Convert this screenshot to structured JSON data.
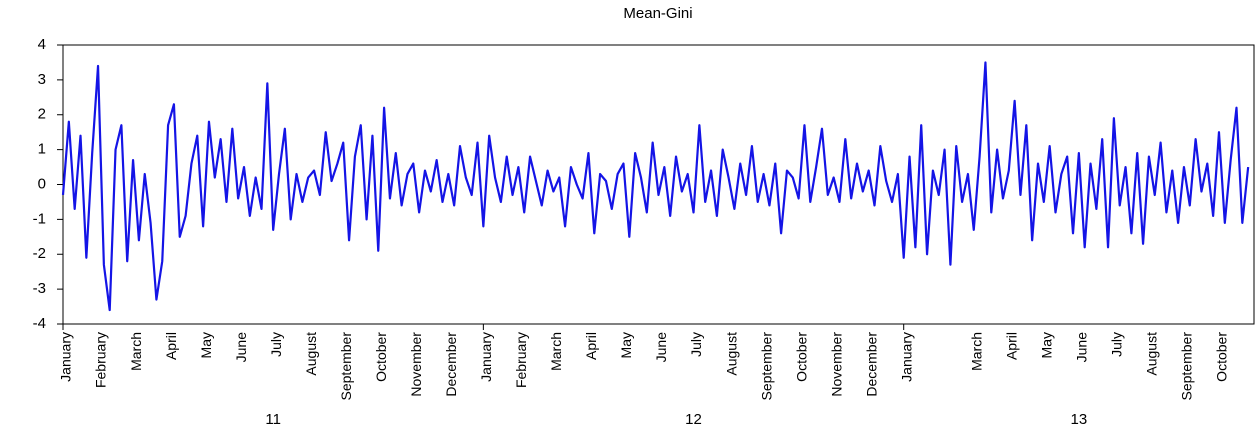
{
  "chart_data": {
    "type": "line",
    "title": "Mean-Gini",
    "categories": [
      "January",
      null,
      null,
      null,
      null,
      null,
      "February",
      null,
      null,
      null,
      null,
      null,
      "March",
      null,
      null,
      null,
      null,
      null,
      "April",
      null,
      null,
      null,
      null,
      null,
      "May",
      null,
      null,
      null,
      null,
      null,
      "June",
      null,
      null,
      null,
      null,
      null,
      "July",
      null,
      null,
      null,
      null,
      null,
      "August",
      null,
      null,
      null,
      null,
      null,
      "September",
      null,
      null,
      null,
      null,
      null,
      "October",
      null,
      null,
      null,
      null,
      null,
      "November",
      null,
      null,
      null,
      null,
      null,
      "December",
      null,
      null,
      null,
      null,
      null,
      "January",
      null,
      null,
      null,
      null,
      null,
      "February",
      null,
      null,
      null,
      null,
      null,
      "March",
      null,
      null,
      null,
      null,
      null,
      "April",
      null,
      null,
      null,
      null,
      null,
      "May",
      null,
      null,
      null,
      null,
      null,
      "June",
      null,
      null,
      null,
      null,
      null,
      "July",
      null,
      null,
      null,
      null,
      null,
      "August",
      null,
      null,
      null,
      null,
      null,
      "September",
      null,
      null,
      null,
      null,
      null,
      "October",
      null,
      null,
      null,
      null,
      null,
      "November",
      null,
      null,
      null,
      null,
      null,
      "December",
      null,
      null,
      null,
      null,
      null,
      "January",
      null,
      null,
      null,
      null,
      null,
      null,
      null,
      null,
      null,
      null,
      null,
      "March",
      null,
      null,
      null,
      null,
      null,
      "April",
      null,
      null,
      null,
      null,
      null,
      "May",
      null,
      null,
      null,
      null,
      null,
      "June",
      null,
      null,
      null,
      null,
      null,
      "July",
      null,
      null,
      null,
      null,
      null,
      "August",
      null,
      null,
      null,
      null,
      null,
      "September",
      null,
      null,
      null,
      null,
      null,
      "October",
      null,
      null,
      null,
      null,
      null
    ],
    "groups": [
      {
        "label": "11",
        "count": 72
      },
      {
        "label": "12",
        "count": 72
      },
      {
        "label": "13",
        "count": 60
      }
    ],
    "series": [
      {
        "name": "Mean-Gini",
        "color": "#1414e6",
        "values": [
          -0.3,
          1.8,
          -0.7,
          1.4,
          -2.1,
          0.9,
          3.4,
          -2.3,
          -3.6,
          1.0,
          1.7,
          -2.2,
          0.7,
          -1.6,
          0.3,
          -1.1,
          -3.3,
          -2.2,
          1.7,
          2.3,
          -1.5,
          -0.9,
          0.6,
          1.4,
          -1.2,
          1.8,
          0.2,
          1.3,
          -0.5,
          1.6,
          -0.4,
          0.5,
          -0.9,
          0.2,
          -0.7,
          2.9,
          -1.3,
          0.3,
          1.6,
          -1.0,
          0.3,
          -0.5,
          0.2,
          0.4,
          -0.3,
          1.5,
          0.1,
          0.6,
          1.2,
          -1.6,
          0.8,
          1.7,
          -1.0,
          1.4,
          -1.9,
          2.2,
          -0.4,
          0.9,
          -0.6,
          0.3,
          0.6,
          -0.8,
          0.4,
          -0.2,
          0.7,
          -0.5,
          0.3,
          -0.6,
          1.1,
          0.2,
          -0.3,
          1.2,
          -1.2,
          1.4,
          0.2,
          -0.5,
          0.8,
          -0.3,
          0.5,
          -0.8,
          0.8,
          0.1,
          -0.6,
          0.4,
          -0.2,
          0.2,
          -1.2,
          0.5,
          0.0,
          -0.4,
          0.9,
          -1.4,
          0.3,
          0.1,
          -0.7,
          0.3,
          0.6,
          -1.5,
          0.9,
          0.2,
          -0.8,
          1.2,
          -0.3,
          0.5,
          -0.9,
          0.8,
          -0.2,
          0.3,
          -0.8,
          1.7,
          -0.5,
          0.4,
          -0.9,
          1.0,
          0.2,
          -0.7,
          0.6,
          -0.3,
          1.1,
          -0.5,
          0.3,
          -0.6,
          0.6,
          -1.4,
          0.4,
          0.2,
          -0.4,
          1.7,
          -0.5,
          0.5,
          1.6,
          -0.3,
          0.2,
          -0.5,
          1.3,
          -0.4,
          0.6,
          -0.2,
          0.4,
          -0.6,
          1.1,
          0.1,
          -0.5,
          0.3,
          -2.1,
          0.8,
          -1.8,
          1.7,
          -2.0,
          0.4,
          -0.3,
          1.0,
          -2.3,
          1.1,
          -0.5,
          0.3,
          -1.3,
          0.8,
          3.5,
          -0.8,
          1.0,
          -0.4,
          0.4,
          2.4,
          -0.3,
          1.7,
          -1.6,
          0.6,
          -0.5,
          1.1,
          -0.8,
          0.3,
          0.8,
          -1.4,
          0.9,
          -1.8,
          0.6,
          -0.7,
          1.3,
          -1.8,
          1.9,
          -0.6,
          0.5,
          -1.4,
          0.9,
          -1.7,
          0.8,
          -0.3,
          1.2,
          -0.8,
          0.4,
          -1.1,
          0.5,
          -0.6,
          1.3,
          -0.2,
          0.6,
          -0.9,
          1.5,
          -1.1,
          0.7,
          2.2,
          -1.1,
          0.5
        ]
      }
    ],
    "ylim": [
      -4,
      4
    ],
    "yticks": [
      -4,
      -3,
      -2,
      -1,
      0,
      1,
      2,
      3,
      4
    ],
    "grid": false
  }
}
